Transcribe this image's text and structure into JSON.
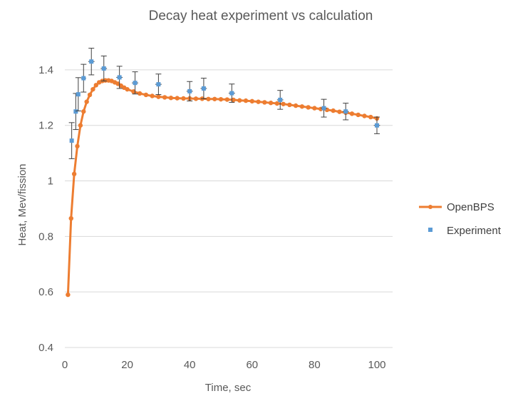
{
  "chart_data": {
    "type": "scatter",
    "title": "Decay heat experiment vs calculation",
    "xlabel": "Time, sec",
    "ylabel": "Heat, Mev/fission",
    "xlim": [
      0,
      100
    ],
    "ylim": [
      0.4,
      1.5
    ],
    "x_ticks": [
      "0",
      "20",
      "40",
      "60",
      "80",
      "100"
    ],
    "y_ticks": [
      "0.4",
      "0.6",
      "0.8",
      "1",
      "1.2",
      "1.4"
    ],
    "grid": "horizontal",
    "legend_position": "right",
    "colors": {
      "openbps": "#ed7d31",
      "experiment": "#5b9bd5",
      "errorbar": "#404040"
    },
    "series": [
      {
        "name": "OpenBPS",
        "kind": "line-markers",
        "x": [
          1,
          2,
          3,
          4,
          5,
          6,
          7,
          8,
          9,
          10,
          11,
          12,
          13,
          14,
          15,
          16,
          17,
          18,
          19,
          20,
          22,
          24,
          26,
          28,
          30,
          32,
          34,
          36,
          38,
          40,
          42,
          44,
          46,
          48,
          50,
          52,
          54,
          56,
          58,
          60,
          62,
          64,
          66,
          68,
          70,
          72,
          74,
          76,
          78,
          80,
          82,
          84,
          86,
          88,
          90,
          92,
          94,
          96,
          98,
          100
        ],
        "y": [
          0.59,
          0.865,
          1.025,
          1.125,
          1.2,
          1.25,
          1.285,
          1.31,
          1.33,
          1.345,
          1.355,
          1.36,
          1.362,
          1.362,
          1.36,
          1.355,
          1.35,
          1.343,
          1.336,
          1.33,
          1.322,
          1.315,
          1.31,
          1.306,
          1.303,
          1.301,
          1.299,
          1.298,
          1.297,
          1.297,
          1.296,
          1.296,
          1.295,
          1.295,
          1.294,
          1.293,
          1.292,
          1.29,
          1.289,
          1.287,
          1.285,
          1.283,
          1.281,
          1.279,
          1.277,
          1.274,
          1.271,
          1.268,
          1.265,
          1.262,
          1.259,
          1.256,
          1.253,
          1.249,
          1.246,
          1.242,
          1.238,
          1.234,
          1.23,
          1.225
        ]
      },
      {
        "name": "Experiment",
        "kind": "points-errorbars",
        "points": [
          {
            "x": 2.2,
            "y": 1.145,
            "yerr": 0.065,
            "xerr": 0.6
          },
          {
            "x": 3.5,
            "y": 1.25,
            "yerr": 0.065,
            "xerr": 0.6
          },
          {
            "x": 4.3,
            "y": 1.312,
            "yerr": 0.06,
            "xerr": 0.6
          },
          {
            "x": 6,
            "y": 1.37,
            "yerr": 0.05,
            "xerr": 0.8
          },
          {
            "x": 8.5,
            "y": 1.43,
            "yerr": 0.048,
            "xerr": 1
          },
          {
            "x": 12.5,
            "y": 1.405,
            "yerr": 0.045,
            "xerr": 1
          },
          {
            "x": 17.5,
            "y": 1.373,
            "yerr": 0.04,
            "xerr": 1
          },
          {
            "x": 22.5,
            "y": 1.353,
            "yerr": 0.04,
            "xerr": 1
          },
          {
            "x": 30,
            "y": 1.348,
            "yerr": 0.037,
            "xerr": 1
          },
          {
            "x": 40,
            "y": 1.323,
            "yerr": 0.035,
            "xerr": 1
          },
          {
            "x": 44.5,
            "y": 1.333,
            "yerr": 0.037,
            "xerr": 1
          },
          {
            "x": 53.5,
            "y": 1.316,
            "yerr": 0.033,
            "xerr": 1
          },
          {
            "x": 69,
            "y": 1.292,
            "yerr": 0.034,
            "xerr": 1
          },
          {
            "x": 83,
            "y": 1.262,
            "yerr": 0.032,
            "xerr": 1
          },
          {
            "x": 90,
            "y": 1.25,
            "yerr": 0.03,
            "xerr": 1
          },
          {
            "x": 100,
            "y": 1.2,
            "yerr": 0.03,
            "xerr": 1
          }
        ]
      }
    ]
  }
}
